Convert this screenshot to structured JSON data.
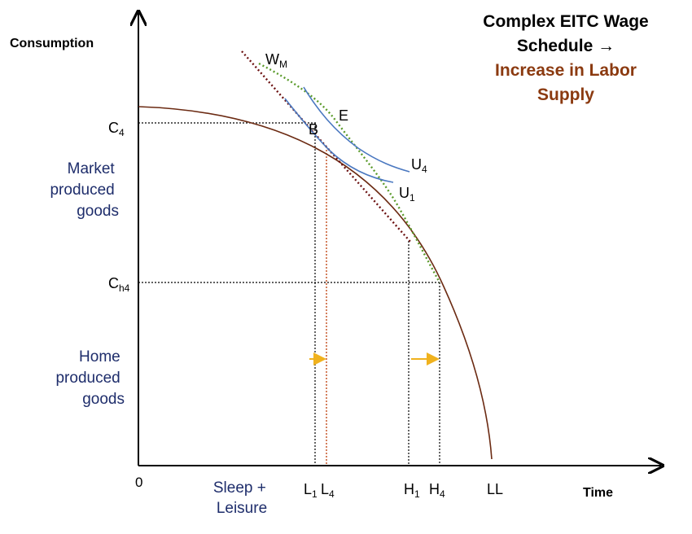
{
  "title": {
    "line1": "Complex EITC Wage",
    "line2": "Schedule →",
    "line3": "Increase in Labor",
    "line4": "Supply"
  },
  "axes": {
    "y_label": "Consumption",
    "x_label": "Time",
    "origin": "0"
  },
  "regions": {
    "market": [
      "Market",
      "produced",
      "goods"
    ],
    "home": [
      "Home",
      "produced",
      "goods"
    ],
    "sleep": [
      "Sleep +",
      "Leisure"
    ]
  },
  "levels": {
    "c4": {
      "main": "C",
      "sub": "4"
    },
    "ch4": {
      "main": "C",
      "sub": "h4"
    }
  },
  "ticks": {
    "l1": {
      "main": "L",
      "sub": "1"
    },
    "l4": {
      "main": "L",
      "sub": "4"
    },
    "h1": {
      "main": "H",
      "sub": "1"
    },
    "h4": {
      "main": "H",
      "sub": "4"
    },
    "ll": "LL"
  },
  "curves": {
    "wm": {
      "main": "W",
      "sub": "M"
    },
    "u4": {
      "main": "U",
      "sub": "4"
    },
    "u1": {
      "main": "U",
      "sub": "1"
    }
  },
  "points": {
    "b": "B",
    "e": "E"
  },
  "colors": {
    "axis": "#000000",
    "ppf": "#6b2a12",
    "indiff": "#4a78c0",
    "wage_green": "#5a9a2a",
    "wage_dark": "#6b1010",
    "guide": "#000000",
    "shift_line": "#c24a1a",
    "arrow": "#f0b21e",
    "navy_text": "#1e2d6b"
  }
}
